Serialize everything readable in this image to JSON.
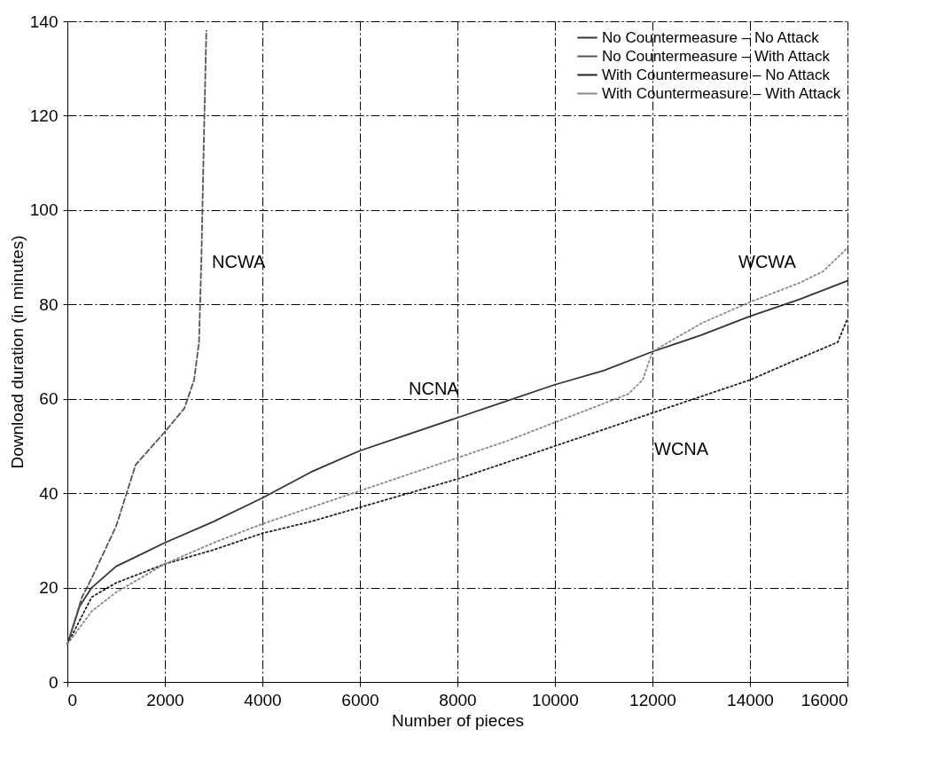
{
  "chart_data": {
    "type": "line",
    "xlabel": "Number of pieces",
    "ylabel": "Download duration (in minutes)",
    "xlim": [
      0,
      16000
    ],
    "ylim": [
      0,
      140
    ],
    "xticks": [
      0,
      2000,
      4000,
      6000,
      8000,
      10000,
      12000,
      14000,
      16000
    ],
    "yticks": [
      0,
      20,
      40,
      60,
      80,
      100,
      120,
      140
    ],
    "grid": true,
    "legend": "top right",
    "marker": "none",
    "series": [
      {
        "name": "No Countermeasure – No Attack",
        "color": "#333333",
        "line_style": "solid",
        "x": [
          0,
          250,
          500,
          1000,
          1500,
          2000,
          3000,
          4000,
          5000,
          6000,
          7000,
          8000,
          9000,
          10000,
          11000,
          12000,
          13000,
          14000,
          15000,
          16000
        ],
        "values": [
          8,
          16,
          20,
          24.5,
          27,
          29.5,
          34,
          39,
          44.5,
          49,
          52.5,
          56,
          59.5,
          63,
          66,
          70,
          73.5,
          77.5,
          81,
          85
        ]
      },
      {
        "name": "No Countermeasure – With Attack",
        "color": "#555555",
        "line_style": "dashed",
        "x": [
          0,
          300,
          500,
          1000,
          1400,
          2000,
          2400,
          2600,
          2700,
          2750,
          2800,
          2850
        ],
        "values": [
          8,
          18,
          22,
          33,
          46,
          53,
          58,
          64,
          72,
          90,
          115,
          138
        ]
      },
      {
        "name": "With Countermeasure – No Attack",
        "color": "#222222",
        "line_style": "dotted",
        "x": [
          0,
          500,
          1000,
          2000,
          3000,
          4000,
          5000,
          6000,
          7000,
          8000,
          9000,
          10000,
          11000,
          12000,
          13000,
          14000,
          15000,
          15800,
          16000
        ],
        "values": [
          8,
          18,
          21,
          25,
          28,
          31.5,
          34,
          37,
          40,
          43,
          46.5,
          50,
          53.5,
          57,
          60.5,
          64,
          68.5,
          72,
          77
        ]
      },
      {
        "name": "With Countermeasure – With Attack",
        "color": "#888888",
        "line_style": "dotted",
        "x": [
          0,
          500,
          1000,
          2000,
          3000,
          4000,
          5000,
          6000,
          7000,
          8000,
          9000,
          10000,
          11000,
          11500,
          11800,
          12000,
          12500,
          13000,
          14000,
          15000,
          15500,
          16000
        ],
        "values": [
          8,
          15,
          19,
          25,
          29.5,
          33.5,
          37,
          40.5,
          44,
          47.5,
          51,
          55,
          59,
          61,
          64,
          70,
          73,
          76,
          80.5,
          84.5,
          87,
          92
        ]
      }
    ],
    "annotations": [
      "NCWA",
      "NCNA",
      "WCNA",
      "WCWA"
    ]
  }
}
